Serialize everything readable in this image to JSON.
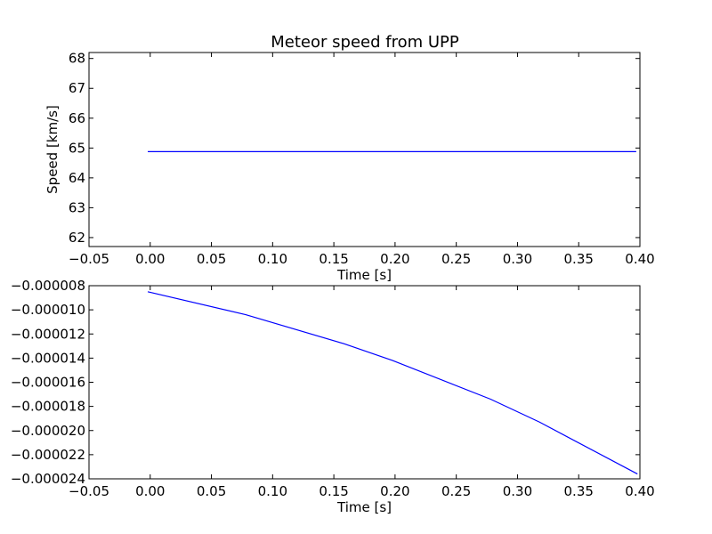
{
  "figure": {
    "title": "Meteor speed from  UPP"
  },
  "chart_data": [
    {
      "type": "line",
      "title": "Meteor speed from  UPP",
      "xlabel": "Time [s]",
      "ylabel": "Speed [km/s]",
      "xlim": [
        -0.05,
        0.4
      ],
      "ylim": [
        61.7,
        68.2
      ],
      "xticks": [
        -0.05,
        0.0,
        0.05,
        0.1,
        0.15,
        0.2,
        0.25,
        0.3,
        0.35,
        0.4
      ],
      "xtick_labels": [
        "−0.05",
        "0.00",
        "0.05",
        "0.10",
        "0.15",
        "0.20",
        "0.25",
        "0.30",
        "0.35",
        "0.40"
      ],
      "yticks": [
        62,
        63,
        64,
        65,
        66,
        67,
        68
      ],
      "ytick_labels": [
        "62",
        "63",
        "64",
        "65",
        "66",
        "67",
        "68"
      ],
      "grid": false,
      "series": [
        {
          "color": "#0000ff",
          "x": [
            -0.002,
            0.397
          ],
          "y": [
            64.88,
            64.88
          ]
        }
      ]
    },
    {
      "type": "line",
      "title": "",
      "xlabel": "Time [s]",
      "ylabel": "",
      "xlim": [
        -0.05,
        0.4
      ],
      "ylim": [
        -2.4e-05,
        -8e-06
      ],
      "xticks": [
        -0.05,
        0.0,
        0.05,
        0.1,
        0.15,
        0.2,
        0.25,
        0.3,
        0.35,
        0.4
      ],
      "xtick_labels": [
        "−0.05",
        "0.00",
        "0.05",
        "0.10",
        "0.15",
        "0.20",
        "0.25",
        "0.30",
        "0.35",
        "0.40"
      ],
      "yticks": [
        -8e-06,
        -1e-05,
        -1.2e-05,
        -1.4e-05,
        -1.6e-05,
        -1.8e-05,
        -2e-05,
        -2.2e-05,
        -2.4e-05
      ],
      "ytick_labels": [
        "−0.000008",
        "−0.000010",
        "−0.000012",
        "−0.000014",
        "−0.000016",
        "−0.000018",
        "−0.000020",
        "−0.000022",
        "−0.000024"
      ],
      "grid": false,
      "series": [
        {
          "color": "#0000ff",
          "x": [
            -0.002,
            0.078,
            0.158,
            0.198,
            0.278,
            0.318,
            0.398
          ],
          "y": [
            -8.5e-06,
            -1.04e-05,
            -1.28e-05,
            -1.42e-05,
            -1.74e-05,
            -1.93e-05,
            -2.36e-05
          ]
        }
      ]
    }
  ]
}
